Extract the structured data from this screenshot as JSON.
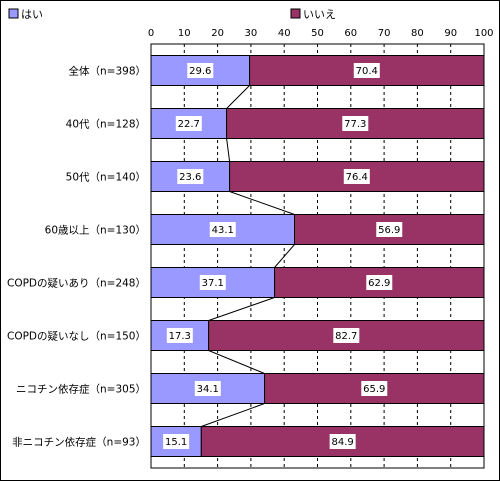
{
  "chart_data": {
    "type": "bar",
    "orientation": "horizontal",
    "stacked": true,
    "title": "",
    "xlabel": "",
    "ylabel": "",
    "xlim": [
      0,
      100
    ],
    "ticks": [
      0,
      10,
      20,
      30,
      40,
      50,
      60,
      70,
      80,
      90,
      100
    ],
    "grid": true,
    "legend_position": "top",
    "connector_lines": true,
    "categories": [
      "全体（n=398）",
      "40代（n=128）",
      "50代（n=140）",
      "60歳以上（n=130）",
      "COPDの疑いあり（n=248）",
      "COPDの疑いなし（n=150）",
      "ニコチン依存症（n=305）",
      "非ニコチン依存症（n=93）"
    ],
    "series": [
      {
        "name": "はい",
        "color": "#9999ff",
        "values": [
          29.6,
          22.7,
          23.6,
          43.1,
          37.1,
          17.3,
          34.1,
          15.1
        ]
      },
      {
        "name": "いいえ",
        "color": "#993366",
        "values": [
          70.4,
          77.3,
          76.4,
          56.9,
          62.9,
          82.7,
          65.9,
          84.9
        ]
      }
    ]
  }
}
